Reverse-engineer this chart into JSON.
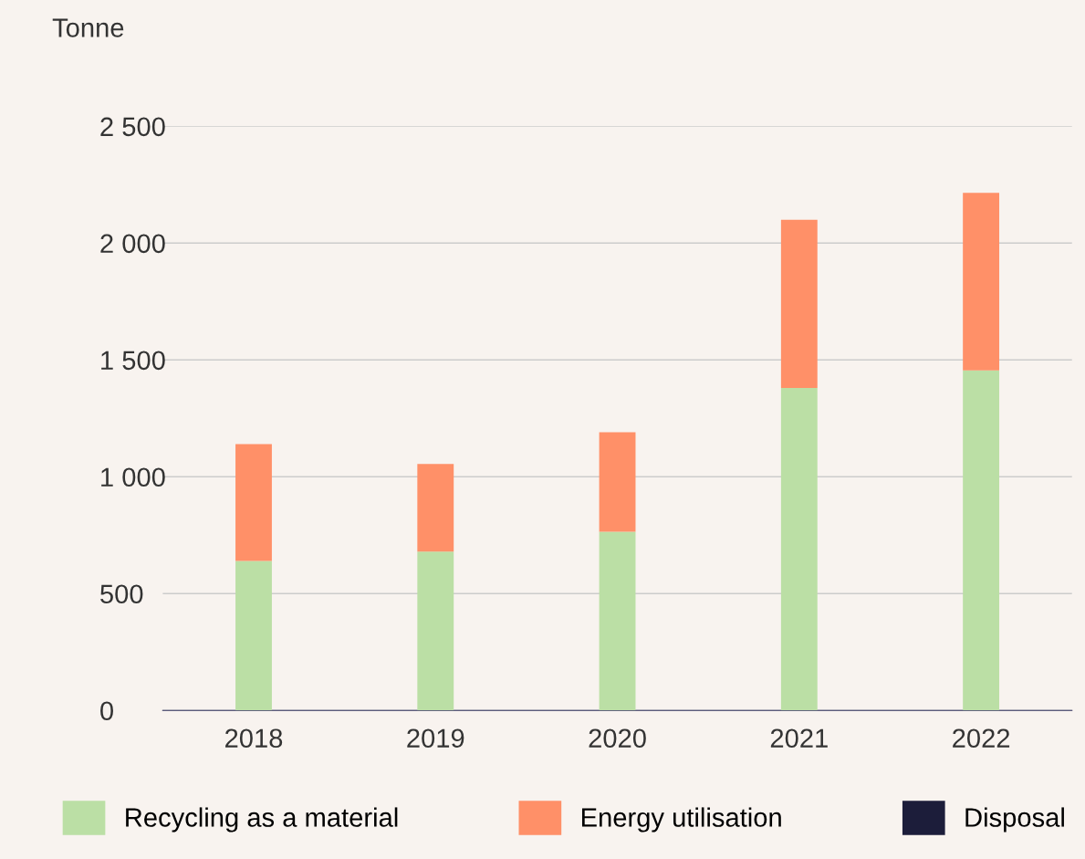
{
  "chart_data": {
    "type": "bar",
    "stacked": true,
    "ylabel": "Tonne",
    "categories": [
      "2018",
      "2019",
      "2020",
      "2021",
      "2022"
    ],
    "series": [
      {
        "name": "Recycling as a material",
        "color": "#bbdfa5",
        "values": [
          640,
          680,
          765,
          1380,
          1455
        ]
      },
      {
        "name": "Energy utilisation",
        "color": "#ff9068",
        "values": [
          500,
          375,
          425,
          720,
          760
        ]
      },
      {
        "name": "Disposal",
        "color": "#1c1d3a",
        "values": [
          0,
          0,
          0,
          0,
          0
        ]
      }
    ],
    "ylim": [
      0,
      2500
    ],
    "yticks": [
      0,
      500,
      {
        "value": 1000,
        "label": "1 000"
      },
      {
        "value": 1500,
        "label": "1 500"
      },
      {
        "value": 2000,
        "label": "2 000"
      },
      {
        "value": 2500,
        "label": "2 500"
      }
    ],
    "grid": "y",
    "legend": "bottom"
  }
}
